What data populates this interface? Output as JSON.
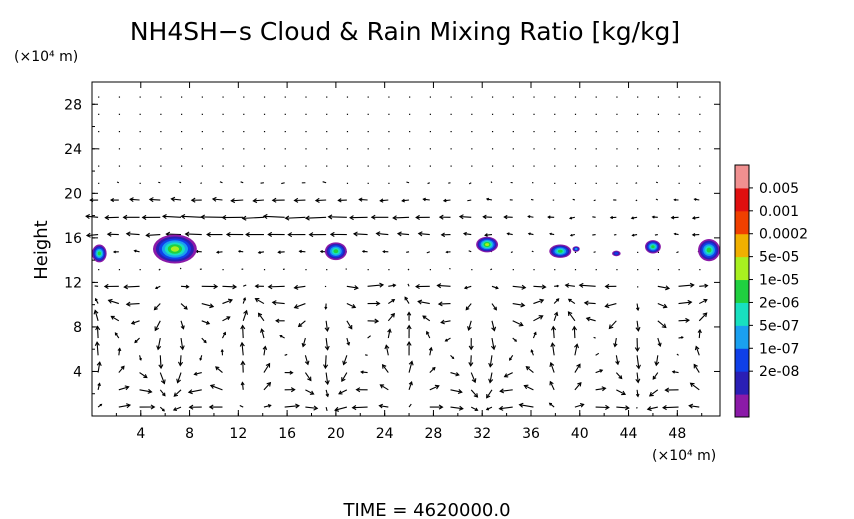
{
  "chart_data": {
    "type": "heatmap",
    "title": "NH4SH−s Cloud & Rain Mixing Ratio [kg/kg]",
    "ylabel": "Height",
    "y_unit": "(×10⁴ m)",
    "x_unit": "(×10⁴ m)",
    "footer": "TIME  =  4620000.0",
    "xlim": [
      0,
      51.5
    ],
    "ylim": [
      0,
      30
    ],
    "x_ticks": [
      4,
      8,
      12,
      16,
      20,
      24,
      28,
      32,
      36,
      40,
      44,
      48
    ],
    "y_ticks": [
      4,
      8,
      12,
      16,
      20,
      24,
      28
    ],
    "colorbar": {
      "labels": [
        "0.005",
        "0.001",
        "0.0002",
        "5e-05",
        "1e-05",
        "2e-06",
        "5e-07",
        "1e-07",
        "2e-08"
      ],
      "colors": [
        "#8b1aa8",
        "#2a1fb5",
        "#1040e8",
        "#1aa0f0",
        "#18e0c0",
        "#20d040",
        "#a8f020",
        "#f0b000",
        "#f04000",
        "#e01010",
        "#f09090"
      ]
    },
    "clouds": [
      {
        "x": 0.6,
        "y": 14.6,
        "w": 1.2,
        "h": 1.6,
        "peak": "1e-05"
      },
      {
        "x": 6.8,
        "y": 15.0,
        "w": 3.6,
        "h": 2.6,
        "peak": "5e-05"
      },
      {
        "x": 20.0,
        "y": 14.8,
        "w": 1.8,
        "h": 1.6,
        "peak": "1e-05"
      },
      {
        "x": 32.4,
        "y": 15.4,
        "w": 1.8,
        "h": 1.4,
        "peak": "5e-05"
      },
      {
        "x": 38.4,
        "y": 14.8,
        "w": 1.8,
        "h": 1.2,
        "peak": "1e-05"
      },
      {
        "x": 39.7,
        "y": 15.0,
        "w": 0.6,
        "h": 0.5,
        "peak": "5e-07"
      },
      {
        "x": 43.0,
        "y": 14.6,
        "w": 0.7,
        "h": 0.5,
        "peak": "1e-07"
      },
      {
        "x": 46.0,
        "y": 15.2,
        "w": 1.3,
        "h": 1.2,
        "peak": "1e-05"
      },
      {
        "x": 50.6,
        "y": 14.9,
        "w": 1.8,
        "h": 2.0,
        "peak": "1e-05"
      }
    ],
    "wind_vectors": "velocity arrows overlaid on grid; circulation cells below 12, eastward jet near 18"
  }
}
